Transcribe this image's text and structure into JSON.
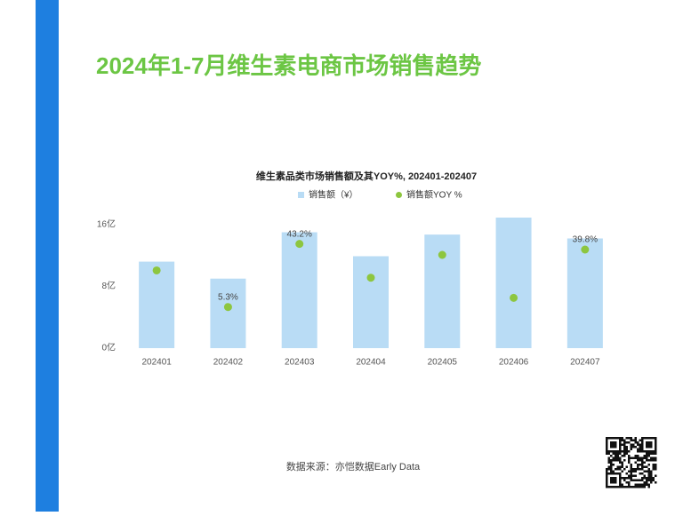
{
  "header": {
    "title": "2024年1-7月维生素电商市场销售趋势"
  },
  "chart_data": {
    "type": "bar_dot",
    "title": "维生素品类市场销售额及其YOY%, 202401-202407",
    "categories": [
      "202401",
      "202402",
      "202403",
      "202404",
      "202405",
      "202406",
      "202407"
    ],
    "series": [
      {
        "name": "销售额（¥）",
        "color": "#b9dcf5",
        "values": [
          11.2,
          9.0,
          15.0,
          11.9,
          14.7,
          16.9,
          14.2
        ]
      },
      {
        "name": "销售额YOY %",
        "color": "#8dc63f",
        "axis": "y2",
        "values": [
          27.3,
          5.3,
          43.2,
          22.9,
          36.6,
          10.8,
          39.8
        ],
        "value_labels": [
          null,
          "5.3%",
          "43.2%",
          null,
          null,
          null,
          "39.8%"
        ]
      }
    ],
    "ylim": [
      0,
      16.9
    ],
    "yticks": [
      {
        "value": 0,
        "label": "0亿"
      },
      {
        "value": 8,
        "label": "8亿"
      },
      {
        "value": 16,
        "label": "16亿"
      }
    ],
    "y2lim": [
      -19.4,
      59.0
    ],
    "legend": "top"
  },
  "footer": {
    "source": "数据来源：亦恺数据Early Data"
  }
}
